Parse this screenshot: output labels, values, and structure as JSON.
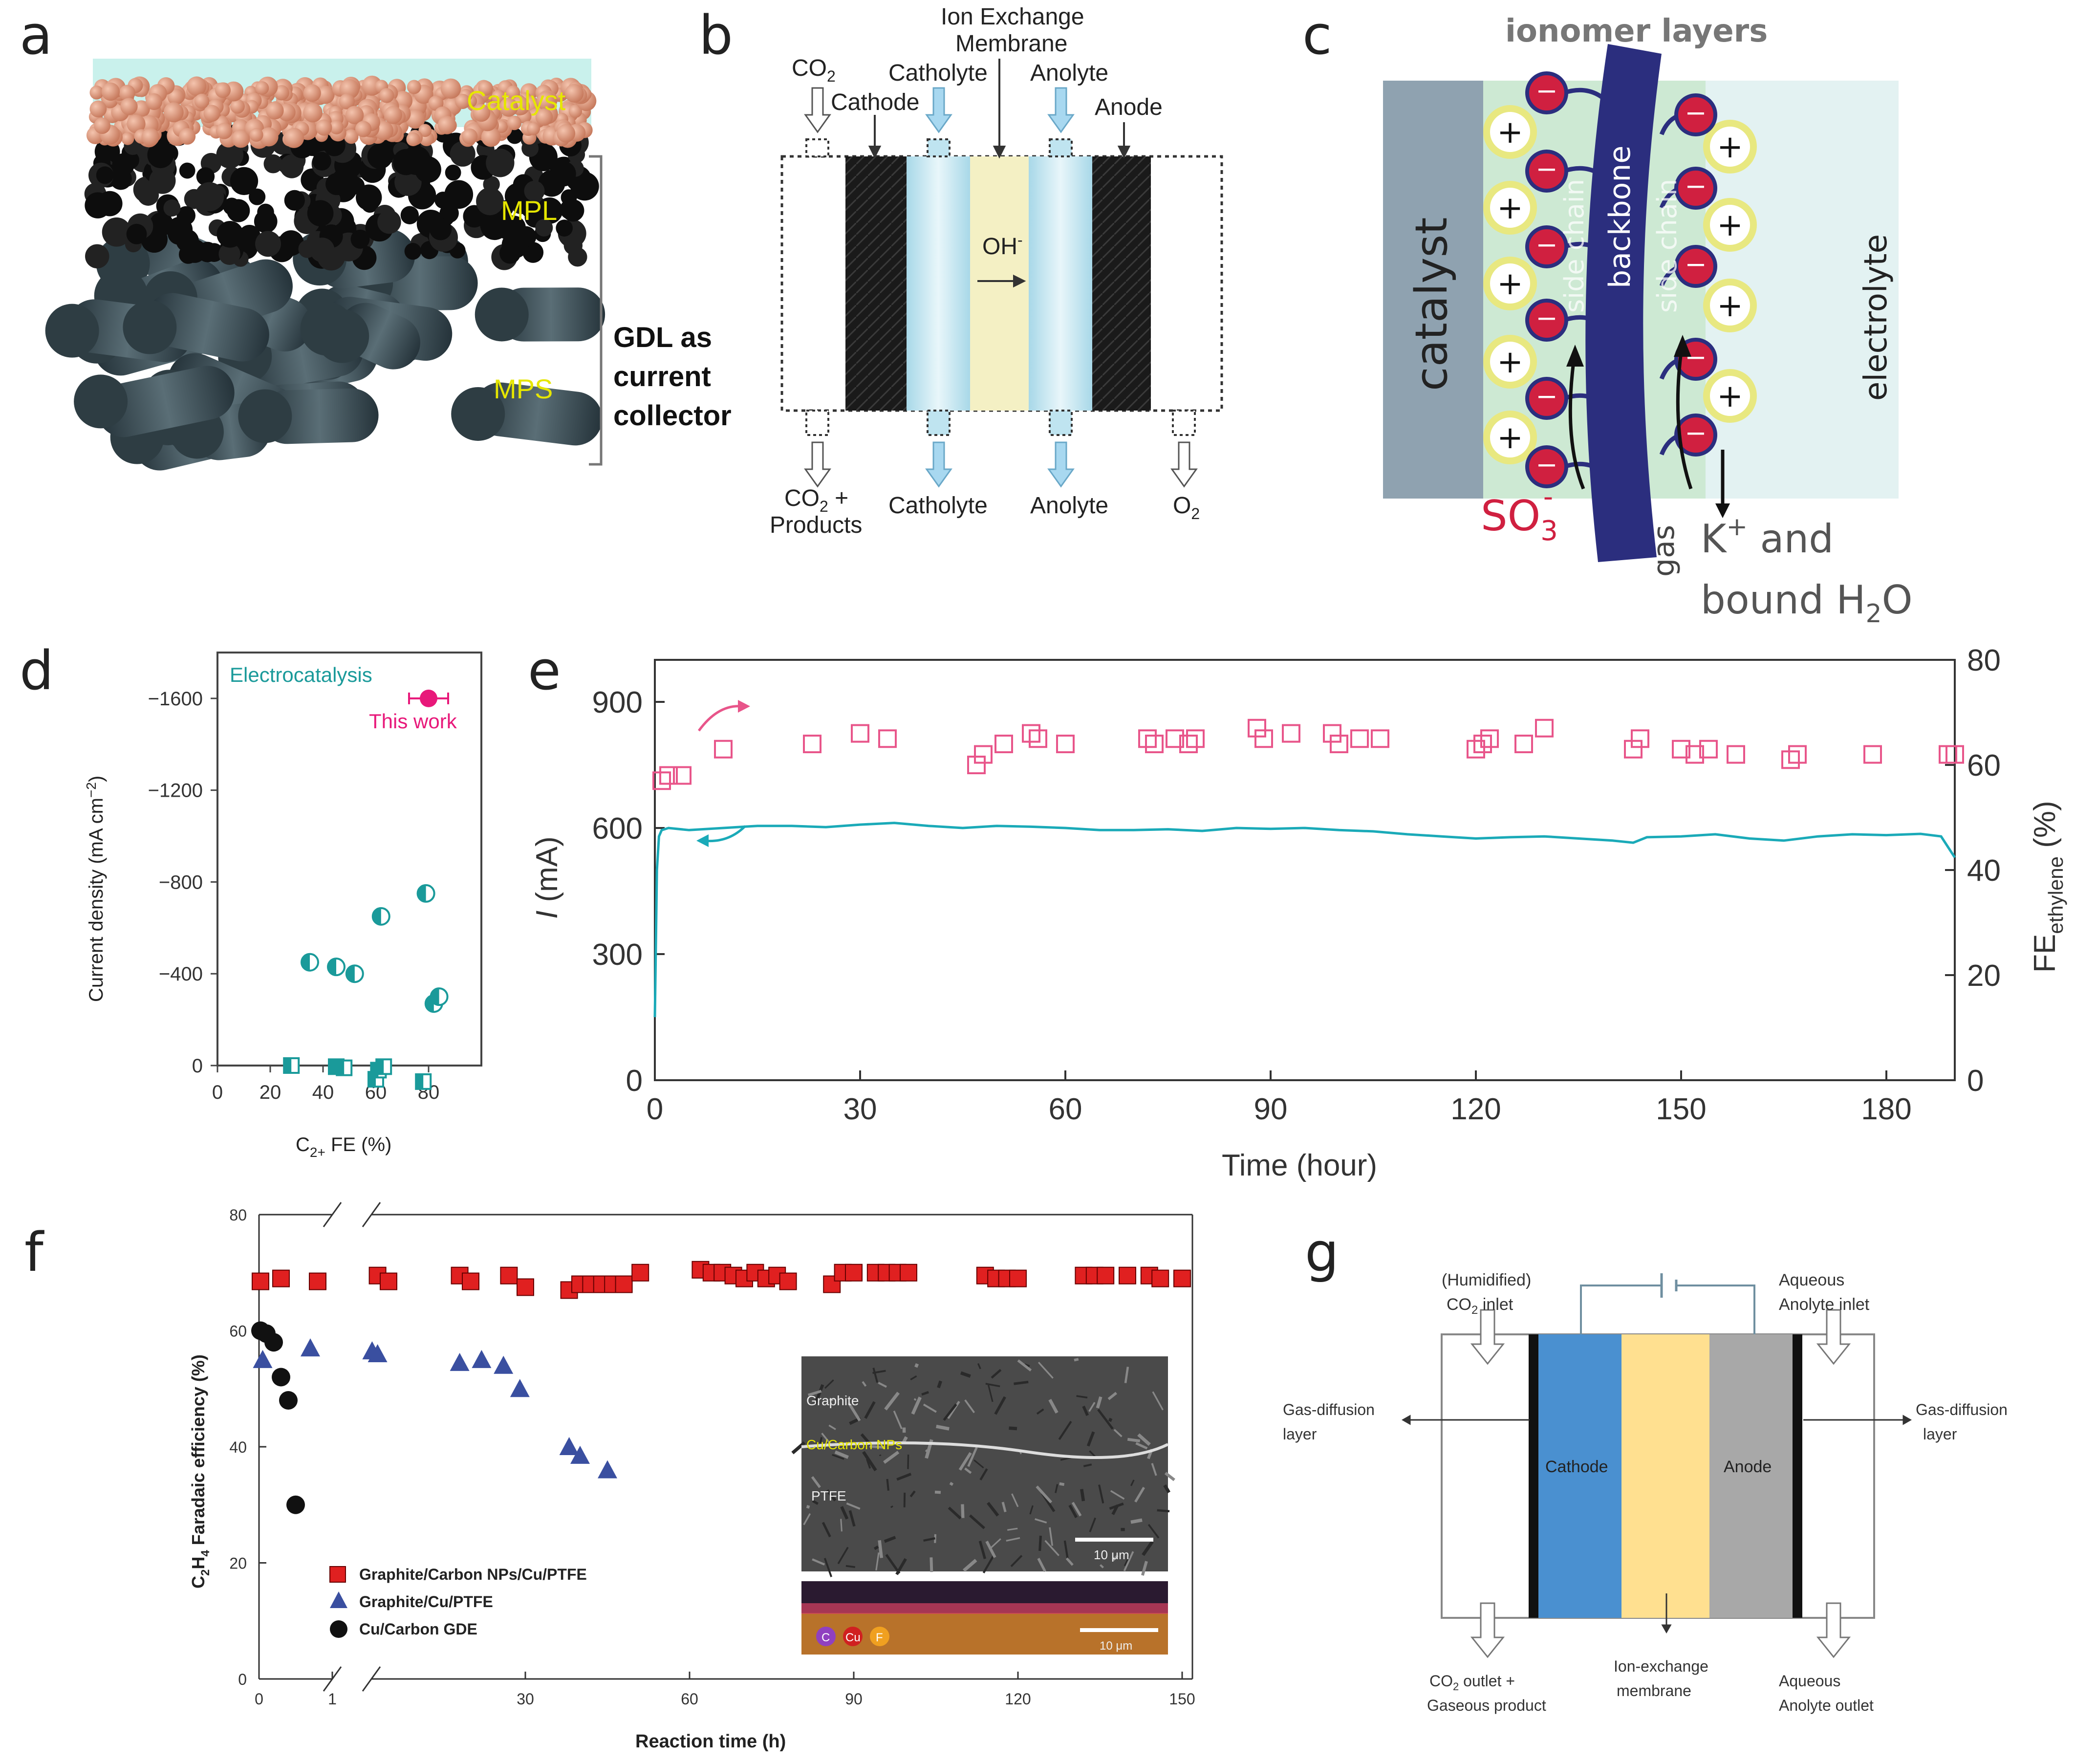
{
  "panel_labels": [
    "a",
    "b",
    "c",
    "d",
    "e",
    "f",
    "g"
  ],
  "panel_a": {
    "labels": {
      "catalyst": "Catalyst",
      "mpl": "MPL",
      "mps": "MPS",
      "gdl": [
        "GDL as",
        "current",
        "collector"
      ]
    },
    "colors": {
      "catalyst": "#e6a98c",
      "mpl": "#111111",
      "mps": "#3a4a50",
      "sky": "#c9f1ec",
      "label": "#e6e600"
    }
  },
  "panel_b": {
    "top_labels": {
      "co2": "CO",
      "co2_sub": "2",
      "cathode": "Cathode",
      "catholyte": "Catholyte",
      "membrane_line1": "Ion Exchange",
      "membrane_line2": "Membrane",
      "anolyte": "Anolyte",
      "anode": "Anode"
    },
    "center": {
      "oh": "OH",
      "oh_sup": "-"
    },
    "bottom_labels": {
      "co2_products_1": "CO",
      "co2_products_sub": "2",
      "co2_products_plus": " +",
      "co2_products_2": "Products",
      "catholyte": "Catholyte",
      "anolyte": "Anolyte",
      "o2": "O",
      "o2_sub": "2"
    }
  },
  "panel_c": {
    "title": "ionomer layers",
    "catalyst": "catalyst",
    "electrolyte": "electrolyte",
    "backbone": "backbone",
    "side_chain": "side chain",
    "so3": "SO",
    "so3_sub": "3",
    "so3_sup": "-",
    "gas": "gas",
    "k_line1": "K",
    "k_sup": "+",
    "k_and": " and",
    "k_line2": "bound H",
    "k_sub": "2",
    "k_O": "O",
    "plus": "+",
    "minus": "−",
    "colors": {
      "catalyst": "#8fa2b0",
      "electrolyte": "#e3f2f2",
      "ionomer": "#cde9d3",
      "backbone": "#2b2e7e",
      "so3": "#d02040",
      "k": "#e8e880"
    }
  },
  "chart_data": [
    {
      "panel": "d",
      "type": "scatter",
      "annotations": [
        "Electrocatalysis",
        "This work"
      ],
      "xlabel": "C",
      "xlabel_sub": "2+",
      "xlabel_tail": " FE (%)",
      "ylabel": "Current density (mA cm",
      "ylabel_sup": "−2",
      "ylabel_tail": ")",
      "xlim": [
        0,
        100
      ],
      "ylim": [
        0,
        -1800
      ],
      "xticks": [
        "0",
        "20",
        "40",
        "60",
        "80"
      ],
      "yticks": [
        "0",
        "−400",
        "−800",
        "−1200",
        "−1600"
      ],
      "series": [
        {
          "marker": "half-circle",
          "x": [
            35,
            45,
            52,
            62,
            79,
            82,
            84
          ],
          "y": [
            -450,
            -430,
            -400,
            -650,
            -750,
            -270,
            -300
          ]
        },
        {
          "marker": "half-square",
          "x": [
            28,
            45,
            48,
            60,
            61,
            63,
            78
          ],
          "y": [
            0,
            5,
            10,
            60,
            20,
            5,
            70
          ]
        },
        {
          "marker": "filled-circle",
          "x": [
            80
          ],
          "y": [
            -1600
          ]
        }
      ],
      "colors": {
        "teal": "#1a9a9a",
        "pink": "#e8187a"
      }
    },
    {
      "panel": "e",
      "type": "line",
      "xlabel": "Time (hour)",
      "ylabel": "I (mA)",
      "ylabel_right": "FE",
      "ylabel_right_sub": "ethylene",
      "ylabel_right_tail": " (%)",
      "xlim": [
        0,
        190
      ],
      "ylim": [
        0,
        1000
      ],
      "ylim_right": [
        0,
        80
      ],
      "xticks": [
        "0",
        "30",
        "60",
        "90",
        "120",
        "150",
        "180"
      ],
      "yticks": [
        "0",
        "300",
        "600",
        "900"
      ],
      "yticks_right": [
        "0",
        "20",
        "40",
        "60",
        "80"
      ],
      "series": [
        {
          "name": "current",
          "axis": "left",
          "x": [
            0,
            0.3,
            0.6,
            1,
            2,
            5,
            10,
            15,
            20,
            25,
            30,
            35,
            40,
            45,
            50,
            55,
            60,
            65,
            70,
            75,
            80,
            85,
            90,
            95,
            100,
            105,
            110,
            115,
            120,
            125,
            130,
            135,
            140,
            143,
            145,
            150,
            155,
            160,
            165,
            170,
            175,
            180,
            185,
            188,
            190
          ],
          "y": [
            150,
            500,
            580,
            595,
            600,
            595,
            600,
            605,
            605,
            602,
            608,
            612,
            605,
            600,
            605,
            603,
            600,
            595,
            595,
            597,
            593,
            600,
            598,
            600,
            595,
            592,
            585,
            580,
            575,
            578,
            580,
            575,
            570,
            565,
            578,
            580,
            585,
            575,
            570,
            580,
            585,
            583,
            586,
            580,
            530
          ]
        },
        {
          "name": "FE",
          "axis": "right",
          "x": [
            1,
            2,
            4,
            10,
            23,
            30,
            34,
            47,
            48,
            51,
            55,
            56,
            60,
            72,
            73,
            76,
            78,
            79,
            88,
            89,
            93,
            99,
            100,
            103,
            106,
            120,
            121,
            122,
            127,
            130,
            143,
            144,
            150,
            152,
            154,
            158,
            166,
            167,
            178,
            189,
            190
          ],
          "y": [
            57,
            58,
            58,
            63,
            64,
            66,
            65,
            60,
            62,
            64,
            66,
            65,
            64,
            65,
            64,
            65,
            64,
            65,
            67,
            65,
            66,
            66,
            64,
            65,
            65,
            63,
            64,
            65,
            64,
            67,
            63,
            65,
            63,
            62,
            63,
            62,
            61,
            62,
            62,
            62,
            62
          ]
        }
      ],
      "colors": {
        "current": "#1aaab8",
        "fe": "#e8558a"
      }
    },
    {
      "panel": "f",
      "type": "scatter",
      "xlabel": "Reaction time (h)",
      "ylabel": "C",
      "ylabel_sub": "2",
      "ylabel_mid": "H",
      "ylabel_sub2": "4",
      "ylabel_tail": " Faradaic efficiency (%)",
      "ylim": [
        0,
        80
      ],
      "yticks": [
        "0",
        "20",
        "40",
        "60",
        "80"
      ],
      "xticks": [
        "0",
        "1",
        "30",
        "60",
        "90",
        "120",
        "150"
      ],
      "legend": [
        "Graphite/Carbon NPs/Cu/PTFE",
        "Graphite/Cu/PTFE",
        "Cu/Carbon GDE"
      ],
      "legend_placement": "bottom-left",
      "series": [
        {
          "name": "Graphite/Carbon NPs/Cu/PTFE",
          "marker": "square",
          "x": [
            0.02,
            0.3,
            0.8,
            3,
            5,
            18,
            20,
            27,
            30,
            38,
            40,
            42,
            44,
            46,
            48,
            51,
            62,
            64,
            66,
            68,
            70,
            72,
            74,
            76,
            78,
            86,
            88,
            90,
            94,
            96,
            98,
            100,
            114,
            116,
            118,
            120,
            132,
            134,
            136,
            140,
            144,
            146,
            150
          ],
          "y": [
            68.5,
            69,
            68.5,
            69.5,
            68.5,
            69.5,
            68.5,
            69.5,
            67.5,
            67,
            68,
            68,
            68,
            68,
            68,
            70,
            70.5,
            70,
            70,
            69.5,
            69,
            70,
            69,
            69.5,
            68.5,
            68,
            70,
            70,
            70,
            70,
            70,
            70,
            69.5,
            69,
            69,
            69,
            69.5,
            69.5,
            69.5,
            69.5,
            69.5,
            69,
            69
          ]
        },
        {
          "name": "Graphite/Cu/PTFE",
          "marker": "triangle",
          "x": [
            0.05,
            0.7,
            2,
            3,
            18,
            22,
            26,
            29,
            38,
            40,
            45
          ],
          "y": [
            55,
            57,
            56.5,
            56,
            54.5,
            55,
            54,
            50,
            40,
            38.5,
            36
          ]
        },
        {
          "name": "Cu/Carbon GDE",
          "marker": "circle",
          "x": [
            0.02,
            0.1,
            0.2,
            0.3,
            0.4,
            0.5
          ],
          "y": [
            60,
            59.5,
            58,
            52,
            48,
            30
          ]
        }
      ],
      "inset": {
        "labels": [
          "Graphite",
          "Cu/Carbon NPs",
          "PTFE"
        ],
        "scale": "10 μm",
        "map_scale": "10 μm",
        "elements": [
          "C",
          "Cu",
          "F"
        ]
      },
      "colors": {
        "square": "#e02020",
        "triangle": "#3a4fa0",
        "circle": "#111111",
        "label": "#e6e600"
      }
    }
  ],
  "panel_g": {
    "labels": {
      "co2_inlet_1": "(Humidified)",
      "co2_inlet_2": "CO",
      "co2_inlet_sub": "2",
      "co2_inlet_tail": " inlet",
      "anolyte_in_1": "Aqueous",
      "anolyte_in_2": "Anolyte inlet",
      "gdl_left_1": "Gas-diffusion",
      "gdl_left_2": "layer",
      "gdl_right_1": "Gas-diffusion",
      "gdl_right_2": "layer",
      "cathode": "Cathode",
      "anode": "Anode",
      "co2_outlet_1": "CO",
      "co2_outlet_sub": "2",
      "co2_outlet_tail": " outlet +",
      "co2_outlet_2": "Gaseous product",
      "membrane_1": "Ion-exchange",
      "membrane_2": "membrane",
      "anolyte_out_1": "Aqueous",
      "anolyte_out_2": "Anolyte outlet"
    },
    "colors": {
      "cathode": "#4a90d0",
      "membrane": "#ffe090",
      "anode": "#a8a8a8"
    }
  }
}
